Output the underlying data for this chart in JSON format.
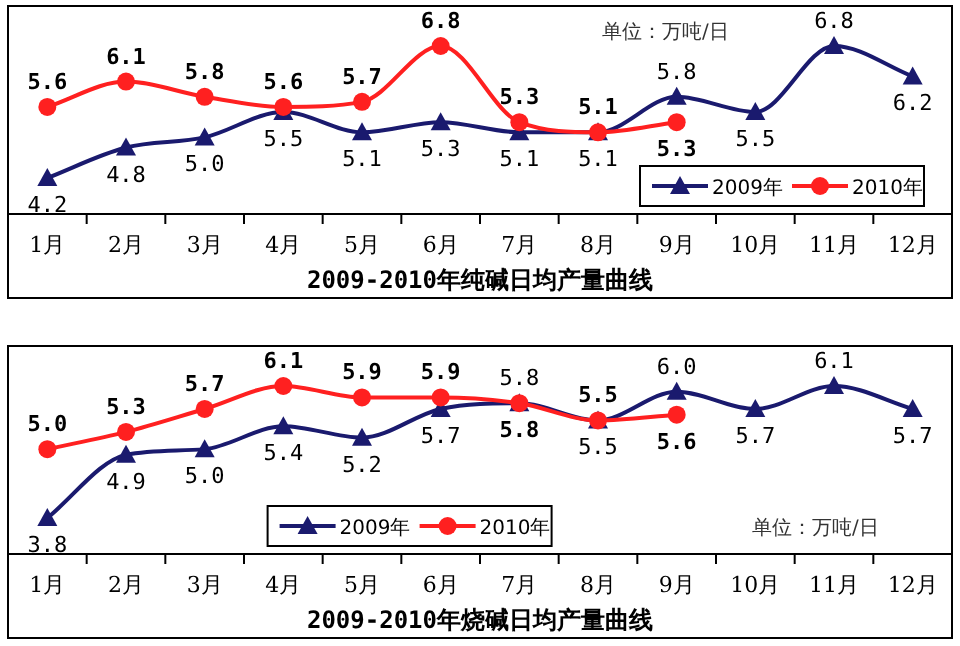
{
  "chart_data": [
    {
      "type": "line",
      "title": "2009-2010年纯碱日均产量曲线",
      "categories": [
        "1月",
        "2月",
        "3月",
        "4月",
        "5月",
        "6月",
        "7月",
        "8月",
        "9月",
        "10月",
        "11月",
        "12月"
      ],
      "series": [
        {
          "name": "2009年",
          "color": "#1a1a6e",
          "marker": "triangle",
          "values": [
            4.2,
            4.8,
            5.0,
            5.5,
            5.1,
            5.3,
            5.1,
            5.1,
            5.8,
            5.5,
            6.8,
            6.2
          ],
          "value_labels": [
            "4.2",
            "4.8",
            "5.0",
            "5.5",
            "5.1",
            "5.3",
            "5.1",
            "5.1",
            "5.8",
            "5.5",
            "6.8",
            "6.2"
          ]
        },
        {
          "name": "2010年",
          "color": "#ff2020",
          "marker": "circle",
          "values": [
            5.6,
            6.1,
            5.8,
            5.6,
            5.7,
            6.8,
            5.3,
            5.1,
            5.3,
            null,
            null,
            null
          ],
          "value_labels": [
            "5.6",
            "6.1",
            "5.8",
            "5.6",
            "5.7",
            "6.8",
            "5.3",
            "5.1",
            "5.3",
            null,
            null,
            null
          ]
        }
      ],
      "legend": "bottom right",
      "annotations": [
        "单位：万吨/日"
      ]
    },
    {
      "type": "line",
      "title": "2009-2010年烧碱日均产量曲线",
      "categories": [
        "1月",
        "2月",
        "3月",
        "4月",
        "5月",
        "6月",
        "7月",
        "8月",
        "9月",
        "10月",
        "11月",
        "12月"
      ],
      "series": [
        {
          "name": "2009年",
          "color": "#1a1a6e",
          "marker": "triangle",
          "values": [
            3.8,
            4.9,
            5.0,
            5.4,
            5.2,
            5.7,
            5.8,
            5.5,
            6.0,
            5.7,
            6.1,
            5.7
          ],
          "value_labels": [
            "3.8",
            "4.9",
            "5.0",
            "5.4",
            "5.2",
            "5.7",
            "5.8",
            "5.5",
            "6.0",
            "5.7",
            "6.1",
            "5.7"
          ]
        },
        {
          "name": "2010年",
          "color": "#ff2020",
          "marker": "circle",
          "values": [
            5.0,
            5.3,
            5.7,
            6.1,
            5.9,
            5.9,
            5.8,
            5.5,
            5.6,
            null,
            null,
            null
          ],
          "value_labels": [
            "5.0",
            "5.3",
            "5.7",
            "6.1",
            "5.9",
            "5.9",
            "5.8",
            "5.5",
            "5.6",
            null,
            null,
            null
          ]
        }
      ],
      "legend": "bottom",
      "annotations": [
        "单位：万吨/日"
      ]
    }
  ]
}
